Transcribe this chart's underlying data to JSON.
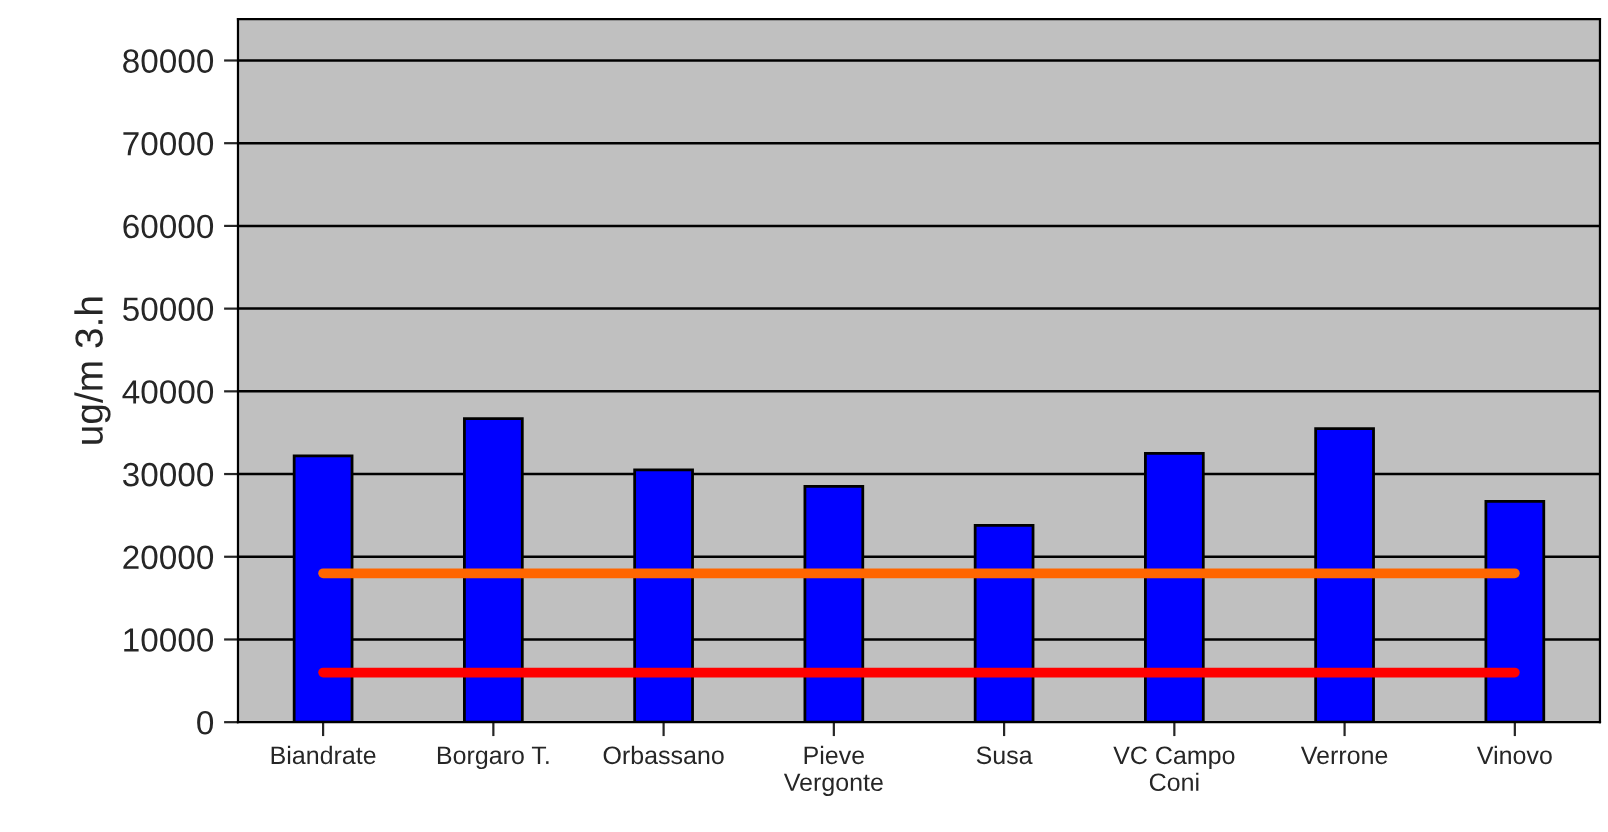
{
  "chart_data": {
    "type": "bar",
    "ylabel": "ug/m 3.h",
    "categories": [
      "Biandrate",
      "Borgaro T.",
      "Orbassano",
      "Pieve\nVergonte",
      "Susa",
      "VC Campo\nConi",
      "Verrone",
      "Vinovo"
    ],
    "series": [
      {
        "color": "#0000ff",
        "values": [
          32200,
          36700,
          30500,
          28500,
          23800,
          32500,
          35500,
          26700
        ]
      },
      {
        "type": "line",
        "color": "#ff6600",
        "values": [
          18000,
          18000,
          18000,
          18000,
          18000,
          18000,
          18000,
          18000
        ]
      },
      {
        "type": "line",
        "color": "#ff0000",
        "values": [
          6000,
          6000,
          6000,
          6000,
          6000,
          6000,
          6000,
          6000
        ]
      }
    ],
    "ylim": [
      0,
      85000
    ],
    "yticks": [
      0,
      10000,
      20000,
      30000,
      40000,
      50000,
      60000,
      70000,
      80000
    ],
    "grid": "y",
    "legend": false
  }
}
